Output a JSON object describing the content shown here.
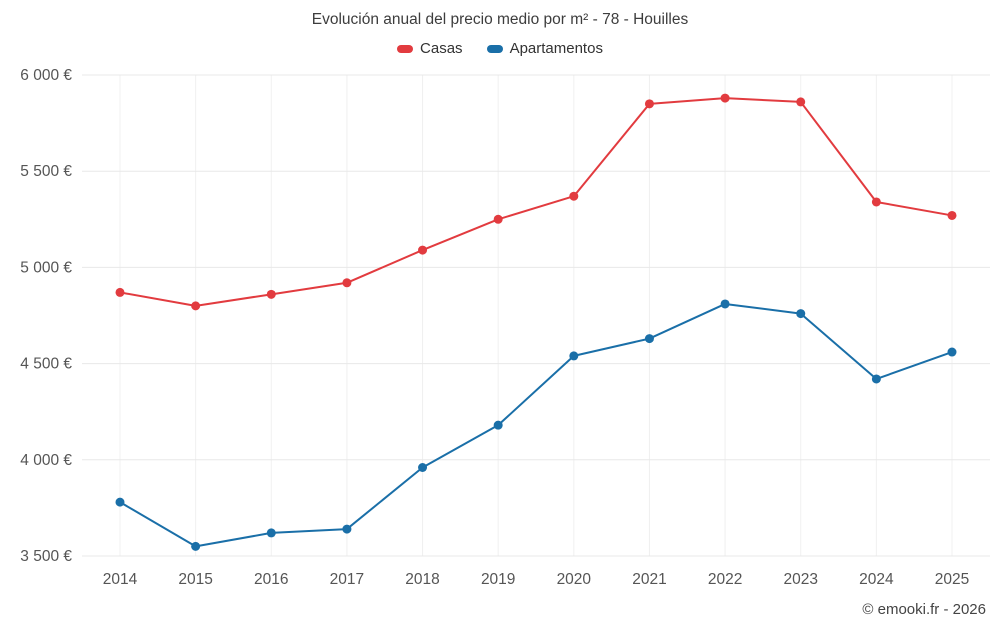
{
  "page": {
    "title": "Evolución anual del precio medio por m² - 78 - Houilles",
    "footer": "© emooki.fr - 2026"
  },
  "legend": {
    "items": [
      {
        "label": "Casas",
        "color": "#e23b3f"
      },
      {
        "label": "Apartamentos",
        "color": "#1a6fa8"
      }
    ]
  },
  "chart_data": {
    "type": "line",
    "title": "Evolución anual del precio medio por m² - 78 - Houilles",
    "categories": [
      "2014",
      "2015",
      "2016",
      "2017",
      "2018",
      "2019",
      "2020",
      "2021",
      "2022",
      "2023",
      "2024",
      "2025"
    ],
    "series": [
      {
        "name": "Casas",
        "color": "#e23b3f",
        "values": [
          4870,
          4800,
          4860,
          4920,
          5090,
          5250,
          5370,
          5850,
          5880,
          5860,
          5340,
          5270
        ]
      },
      {
        "name": "Apartamentos",
        "color": "#1a6fa8",
        "values": [
          3780,
          3550,
          3620,
          3640,
          3960,
          4180,
          4540,
          4630,
          4810,
          4760,
          4420,
          4560
        ]
      }
    ],
    "xlabel": "",
    "ylabel": "",
    "ylim": [
      3500,
      6000
    ],
    "yticks": [
      3500,
      4000,
      4500,
      5000,
      5500,
      6000
    ],
    "ytick_labels": [
      "3 500 €",
      "4 000 €",
      "4 500 €",
      "5 000 €",
      "5 500 €",
      "6 000 €"
    ],
    "grid": true,
    "legend_position": "top"
  }
}
